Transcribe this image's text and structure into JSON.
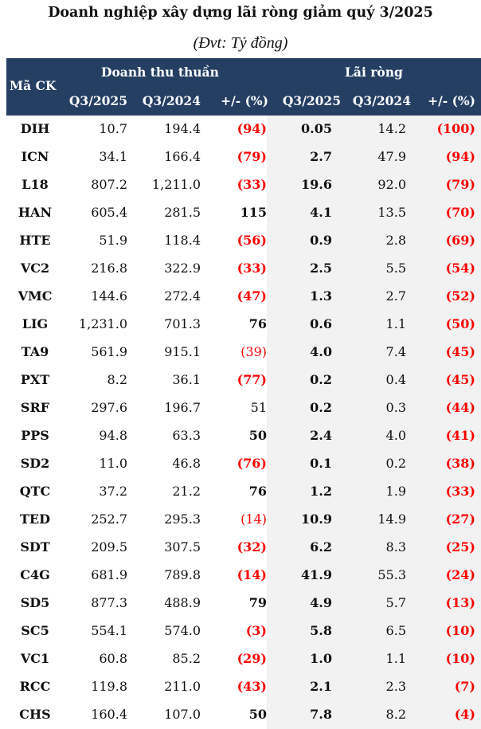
{
  "title": "Doanh nghiệp xây dựng lãi ròng giảm quý 3/2025",
  "subtitle": "(Đvt: Tỷ đồng)",
  "header": {
    "ticker": "Mã CK",
    "group_revenue": "Doanh thu thuần",
    "group_profit": "Lãi ròng",
    "q2025": "Q3/2025",
    "q2024": "Q3/2024",
    "change": "+/- (%)"
  },
  "colors": {
    "header_bg": "#253f63",
    "negative": "#ff0000",
    "profit_bg": "#f2f2f2"
  },
  "rows": [
    [
      "DIH",
      "10.7",
      "194.4",
      "(94)",
      "0.05",
      "14.2",
      "(100)",
      true
    ],
    [
      "ICN",
      "34.1",
      "166.4",
      "(79)",
      "2.7",
      "47.9",
      "(94)",
      true
    ],
    [
      "L18",
      "807.2",
      "1,211.0",
      "(33)",
      "19.6",
      "92.0",
      "(79)",
      true
    ],
    [
      "HAN",
      "605.4",
      "281.5",
      "115",
      "4.1",
      "13.5",
      "(70)",
      true
    ],
    [
      "HTE",
      "51.9",
      "118.4",
      "(56)",
      "0.9",
      "2.8",
      "(69)",
      true
    ],
    [
      "VC2",
      "216.8",
      "322.9",
      "(33)",
      "2.5",
      "5.5",
      "(54)",
      true
    ],
    [
      "VMC",
      "144.6",
      "272.4",
      "(47)",
      "1.3",
      "2.7",
      "(52)",
      true
    ],
    [
      "LIG",
      "1,231.0",
      "701.3",
      "76",
      "0.6",
      "1.1",
      "(50)",
      true
    ],
    [
      "TA9",
      "561.9",
      "915.1",
      "(39)",
      "4.0",
      "7.4",
      "(45)",
      false
    ],
    [
      "PXT",
      "8.2",
      "36.1",
      "(77)",
      "0.2",
      "0.4",
      "(45)",
      true
    ],
    [
      "SRF",
      "297.6",
      "196.7",
      "51",
      "0.2",
      "0.3",
      "(44)",
      false
    ],
    [
      "PPS",
      "94.8",
      "63.3",
      "50",
      "2.4",
      "4.0",
      "(41)",
      true
    ],
    [
      "SD2",
      "11.0",
      "46.8",
      "(76)",
      "0.1",
      "0.2",
      "(38)",
      true
    ],
    [
      "QTC",
      "37.2",
      "21.2",
      "76",
      "1.2",
      "1.9",
      "(33)",
      true
    ],
    [
      "TED",
      "252.7",
      "295.3",
      "(14)",
      "10.9",
      "14.9",
      "(27)",
      false
    ],
    [
      "SDT",
      "209.5",
      "307.5",
      "(32)",
      "6.2",
      "8.3",
      "(25)",
      true
    ],
    [
      "C4G",
      "681.9",
      "789.8",
      "(14)",
      "41.9",
      "55.3",
      "(24)",
      true
    ],
    [
      "SD5",
      "877.3",
      "488.9",
      "79",
      "4.9",
      "5.7",
      "(13)",
      true
    ],
    [
      "SC5",
      "554.1",
      "574.0",
      "(3)",
      "5.8",
      "6.5",
      "(10)",
      true
    ],
    [
      "VC1",
      "60.8",
      "85.2",
      "(29)",
      "1.0",
      "1.1",
      "(10)",
      true
    ],
    [
      "RCC",
      "119.8",
      "211.0",
      "(43)",
      "2.1",
      "2.3",
      "(7)",
      true
    ],
    [
      "CHS",
      "160.4",
      "107.0",
      "50",
      "7.8",
      "8.2",
      "(4)",
      true
    ]
  ]
}
